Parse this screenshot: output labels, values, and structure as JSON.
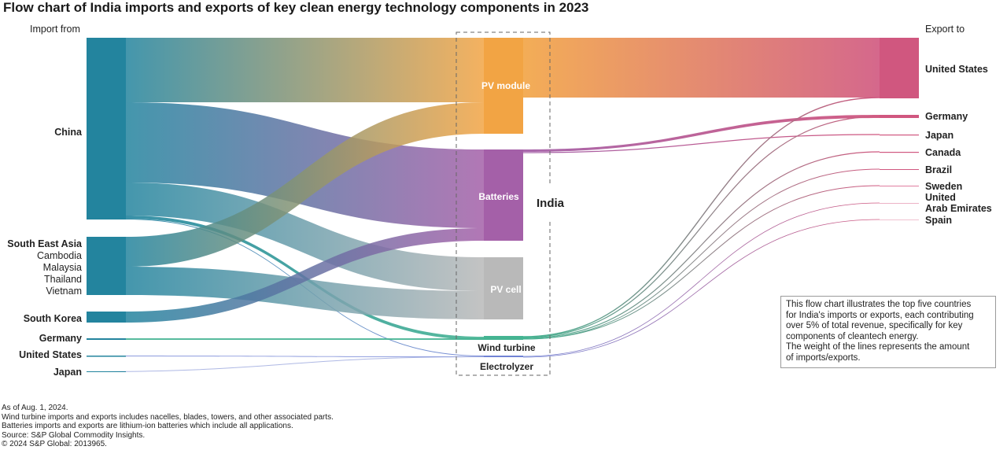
{
  "title": "Flow chart of India imports and exports of key clean energy technology components in 2023",
  "import_header": "Import from",
  "export_header": "Export to",
  "center_label": "India",
  "sources": [
    {
      "id": "china",
      "lines": [
        "China"
      ],
      "bold": [
        true
      ],
      "color": "#23849e"
    },
    {
      "id": "sea",
      "lines": [
        "South East Asia",
        "Cambodia",
        "Malaysia",
        "Thailand",
        "Vietnam"
      ],
      "bold": [
        true,
        false,
        false,
        false,
        false
      ],
      "color": "#23849e"
    },
    {
      "id": "korea",
      "lines": [
        "South Korea"
      ],
      "bold": [
        true
      ],
      "color": "#23849e"
    },
    {
      "id": "germany",
      "lines": [
        "Germany"
      ],
      "bold": [
        true
      ],
      "color": "#23849e"
    },
    {
      "id": "us",
      "lines": [
        "United States"
      ],
      "bold": [
        true
      ],
      "color": "#23849e"
    },
    {
      "id": "japan",
      "lines": [
        "Japan"
      ],
      "bold": [
        true
      ],
      "color": "#23849e"
    }
  ],
  "technologies": [
    {
      "id": "pv_module",
      "label": "PV module",
      "color": "#f2a444"
    },
    {
      "id": "batteries",
      "label": "Batteries",
      "color": "#a460a8"
    },
    {
      "id": "pv_cell",
      "label": "PV cell",
      "color": "#b9b9b9"
    },
    {
      "id": "wind",
      "label": "Wind turbine",
      "color": "#45b492"
    },
    {
      "id": "electrolyzer",
      "label": "Electrolyzer",
      "color": "#7082d4"
    }
  ],
  "destinations": [
    {
      "id": "us",
      "lines": [
        "United States"
      ]
    },
    {
      "id": "germany",
      "lines": [
        "Germany"
      ]
    },
    {
      "id": "japan",
      "lines": [
        "Japan"
      ]
    },
    {
      "id": "canada",
      "lines": [
        "Canada"
      ]
    },
    {
      "id": "brazil",
      "lines": [
        "Brazil"
      ]
    },
    {
      "id": "sweden",
      "lines": [
        "Sweden"
      ]
    },
    {
      "id": "uae",
      "lines": [
        "United",
        "Arab Emirates"
      ]
    },
    {
      "id": "spain",
      "lines": [
        "Spain"
      ]
    }
  ],
  "dest_color": "#d0577f",
  "note": {
    "lines": [
      "This flow chart illustrates the top five countries",
      "for India's imports or exports, each contributing",
      "over 5% of total revenue, specifically for key",
      "components of cleantech energy.",
      "The weight of the lines represents the amount",
      "of imports/exports."
    ]
  },
  "footer": [
    "As of Aug. 1, 2024.",
    "Wind turbine imports and exports includes nacelles, blades, towers, and other associated parts.",
    "Batteries imports and exports are lithium-ion batteries which include all applications.",
    "Source: S&P Global Commodity Insights.",
    "© 2024 S&P Global: 2013965."
  ]
}
